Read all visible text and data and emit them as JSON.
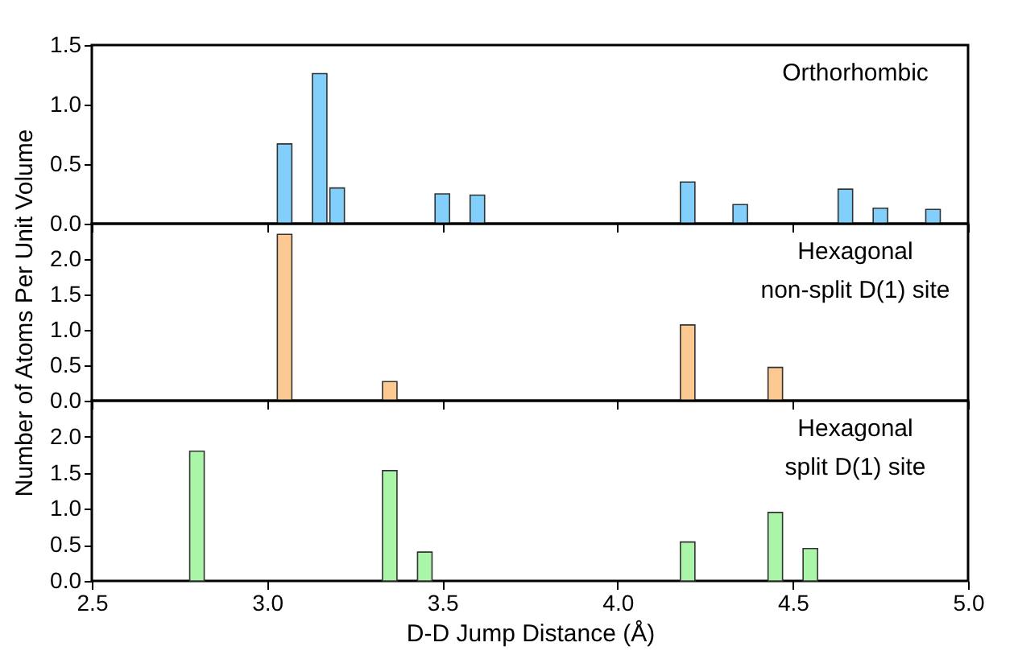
{
  "chart_data": [
    {
      "type": "bar",
      "x": [
        3.05,
        3.15,
        3.2,
        3.5,
        3.6,
        4.2,
        4.35,
        4.65,
        4.75,
        4.9
      ],
      "values": [
        0.67,
        1.26,
        0.3,
        0.25,
        0.24,
        0.35,
        0.16,
        0.29,
        0.13,
        0.12
      ],
      "color": "#81cffa",
      "xlim": [
        2.5,
        5.0
      ],
      "xticks": [
        2.5,
        3,
        3.5,
        4,
        4.5,
        5
      ],
      "ylim": [
        0,
        1.5
      ],
      "yticks": [
        {
          "value": 0,
          "label": "0.0"
        },
        {
          "value": 0.5,
          "label": "0.5"
        },
        {
          "value": 1,
          "label": "1.0"
        },
        {
          "value": 1.5,
          "label": "1.5"
        }
      ],
      "tick_labels": "y",
      "grid": false,
      "annotations": [
        "Orthorhombic"
      ]
    },
    {
      "type": "bar",
      "x": [
        3.05,
        3.35,
        4.2,
        4.45
      ],
      "values": [
        2.35,
        0.27,
        1.07,
        0.47
      ],
      "color": "#fdc992",
      "xlim": [
        2.5,
        5.0
      ],
      "xticks": [
        2.5,
        3,
        3.5,
        4,
        4.5,
        5
      ],
      "ylim": [
        0,
        2.5
      ],
      "yticks": [
        {
          "value": 0,
          "label": "0.0"
        },
        {
          "value": 0.5,
          "label": "0.5"
        },
        {
          "value": 1,
          "label": "1.0"
        },
        {
          "value": 1.5,
          "label": "1.5"
        },
        {
          "value": 2,
          "label": "2.0"
        }
      ],
      "tick_labels": "y",
      "ylabel": "Number of Atoms Per Unit Volume",
      "grid": false,
      "annotations": [
        "Hexagonal\nnon-split D(1) site"
      ]
    },
    {
      "type": "bar",
      "x": [
        2.8,
        3.35,
        3.45,
        4.2,
        4.45,
        4.55
      ],
      "values": [
        1.8,
        1.53,
        0.4,
        0.54,
        0.95,
        0.45
      ],
      "color": "#abf5a9",
      "xlim": [
        2.5,
        5.0
      ],
      "xticks": [
        2.5,
        {
          "value": 3,
          "label": "3.0"
        },
        3.5,
        {
          "value": 4,
          "label": "4.0"
        },
        4.5,
        {
          "value": 5,
          "label": "5.0"
        }
      ],
      "ylim": [
        0,
        2.5
      ],
      "yticks": [
        {
          "value": 0,
          "label": "0.0"
        },
        {
          "value": 0.5,
          "label": "0.5"
        },
        {
          "value": 1,
          "label": "1.0"
        },
        {
          "value": 1.5,
          "label": "1.5"
        },
        {
          "value": 2,
          "label": "2.0"
        }
      ],
      "xlabel": "D-D Jump Distance (Å)",
      "grid": false,
      "annotations": [
        "Hexagonal\nsplit D(1) site"
      ]
    }
  ]
}
